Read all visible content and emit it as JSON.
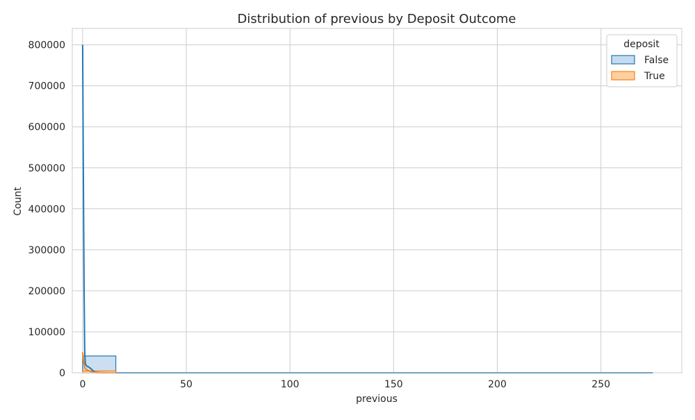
{
  "chart_data": {
    "type": "histogram",
    "title": "Distribution of previous by Deposit Outcome",
    "xlabel": "previous",
    "ylabel": "Count",
    "xlim": [
      -5,
      289
    ],
    "ylim": [
      0,
      840000
    ],
    "x_ticks": [
      0,
      50,
      100,
      150,
      200,
      250
    ],
    "y_ticks": [
      0,
      100000,
      200000,
      300000,
      400000,
      500000,
      600000,
      700000,
      800000
    ],
    "grid": true,
    "legend": {
      "title": "deposit",
      "placement": "top-right"
    },
    "series": [
      {
        "name": "False",
        "color": "#1f77b4",
        "fill": "#c6dbef",
        "bins": [
          {
            "x0": 0,
            "x1": 16,
            "count": 41000
          },
          {
            "x0": 16,
            "x1": 275,
            "count": 200
          }
        ],
        "kde": [
          {
            "x": 0,
            "y": 800000
          },
          {
            "x": 0.3,
            "y": 520000
          },
          {
            "x": 0.7,
            "y": 200000
          },
          {
            "x": 1,
            "y": 50000
          },
          {
            "x": 1.3,
            "y": 22000
          },
          {
            "x": 2,
            "y": 16000
          },
          {
            "x": 3,
            "y": 14000
          },
          {
            "x": 4,
            "y": 10000
          },
          {
            "x": 5,
            "y": 5000
          },
          {
            "x": 6,
            "y": 1500
          },
          {
            "x": 8,
            "y": 500
          },
          {
            "x": 12,
            "y": 100
          },
          {
            "x": 20,
            "y": 0
          },
          {
            "x": 275,
            "y": 0
          }
        ]
      },
      {
        "name": "True",
        "color": "#ff7f0e",
        "fill": "#fdd0a2",
        "bins": [
          {
            "x0": 0,
            "x1": 16,
            "count": 4500
          }
        ],
        "kde": [
          {
            "x": 0,
            "y": 50000
          },
          {
            "x": 0.4,
            "y": 30000
          },
          {
            "x": 1,
            "y": 12000
          },
          {
            "x": 2,
            "y": 7000
          },
          {
            "x": 3,
            "y": 5000
          },
          {
            "x": 4,
            "y": 3000
          },
          {
            "x": 5,
            "y": 1500
          },
          {
            "x": 7,
            "y": 300
          },
          {
            "x": 10,
            "y": 0
          },
          {
            "x": 16,
            "y": 0
          }
        ]
      }
    ]
  }
}
